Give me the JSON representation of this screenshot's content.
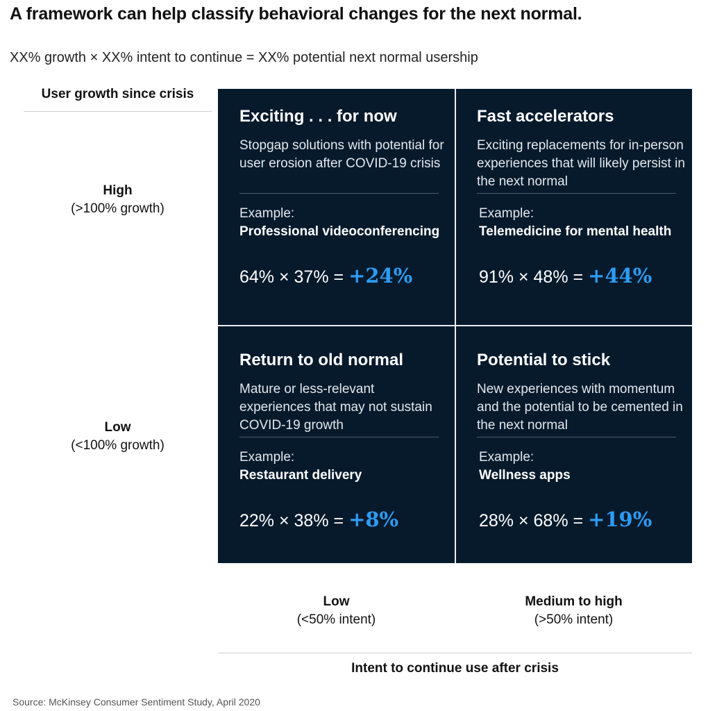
{
  "title": "A framework can help classify behavioral changes for the next normal.",
  "subtitle": "XX% growth × XX% intent to continue = XX% potential next normal usership",
  "y_axis": {
    "title": "User growth since crisis",
    "rows": [
      {
        "level": "High",
        "range": "(>100% growth)"
      },
      {
        "level": "Low",
        "range": "(<100% growth)"
      }
    ]
  },
  "x_axis": {
    "title": "Intent to continue use after crisis",
    "cols": [
      {
        "level": "Low",
        "range": "(<50% intent)"
      },
      {
        "level": "Medium to high",
        "range": "(>50% intent)"
      }
    ]
  },
  "quadrants": {
    "top_left": {
      "title": "Exciting . . . for now",
      "description": "Stopgap solutions with potential for user erosion after COVID-19 crisis",
      "example_label": "Example:",
      "example": "Professional videoconferencing",
      "formula": "64% × 37% =",
      "result": "+24%"
    },
    "top_right": {
      "title": "Fast accelerators",
      "description": "Exciting replacements for in-person experiences that will likely persist in the next normal",
      "example_label": "Example:",
      "example": "Telemedicine for mental health",
      "formula": "91% × 48% =",
      "result": "+44%"
    },
    "bottom_left": {
      "title": "Return to old normal",
      "description": "Mature or less-relevant experiences that may not sustain COVID-19 growth",
      "example_label": "Example:",
      "example": "Restaurant delivery",
      "formula": "22% × 38% =",
      "result": "+8%"
    },
    "bottom_right": {
      "title": "Potential to stick",
      "description": "New experiences with momentum and the potential to be cemented in the next normal",
      "example_label": "Example:",
      "example": "Wellness apps",
      "formula": "28% × 68% =",
      "result": "+19%"
    }
  },
  "source": "Source: McKinsey Consumer Sentiment Study, April 2020",
  "colors": {
    "quadrant_background": "#071a2c",
    "result_accent": "#2d9cf4",
    "divider": "#e9edf1"
  }
}
